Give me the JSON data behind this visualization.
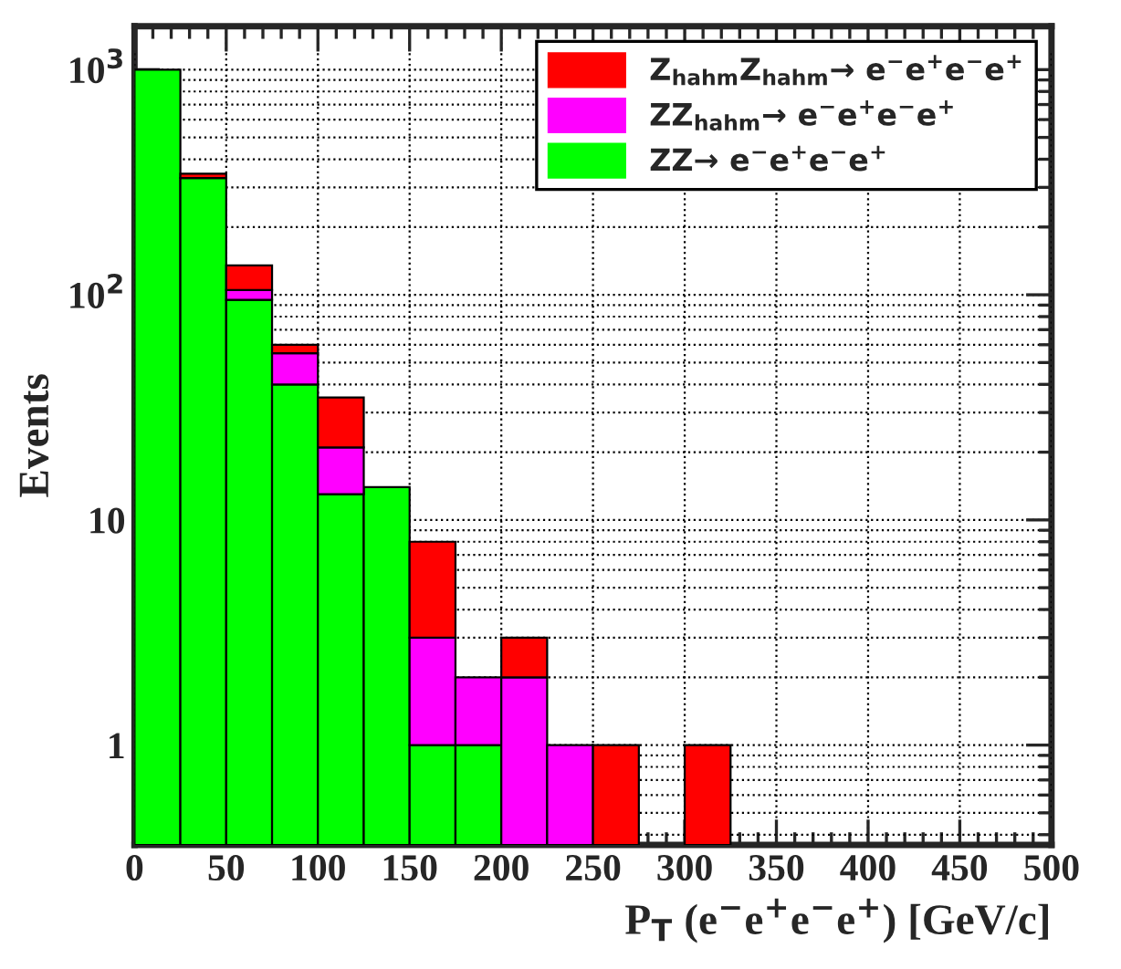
{
  "chart_data": {
    "type": "bar",
    "stacked": true,
    "log": "y",
    "grid": true,
    "legend": "top right",
    "xlabel": "P$_{T}$ (e$^{−}$e$^{+}$e$^{−}$e$^{+}$) [GeV/c]",
    "ylabel": "Events",
    "x": [
      12.5,
      37.5,
      62.5,
      87.5,
      112.5,
      137.5,
      162.5,
      187.5,
      212.5,
      237.5,
      262.5,
      287.5,
      312.5
    ],
    "series": [
      {
        "name": "ZZ→ e$^{−}$e$^{+}$e$^{−}$e$^{+}$",
        "color": "#00ff00",
        "values": [
          1000,
          330,
          95,
          40,
          13,
          14,
          1,
          1,
          null,
          null,
          null,
          null,
          null
        ]
      },
      {
        "name": "ZZ$_{hahm}$→ e$^{−}$e$^{+}$e$^{−}$e$^{+}$",
        "color": "#ff00ff",
        "values": [
          null,
          null,
          10,
          15,
          8,
          null,
          2,
          1,
          2,
          1,
          null,
          null,
          null
        ]
      },
      {
        "name": "Z$_{hahm}$Z$_{hahm}$→ e$^{−}$e$^{+}$e$^{−}$e$^{+}$",
        "color": "#ff0000",
        "values": [
          null,
          15,
          30,
          5,
          14,
          null,
          5,
          null,
          1,
          null,
          1,
          null,
          1
        ]
      }
    ],
    "xlim": [
      0,
      500
    ],
    "xticks": [
      0,
      50,
      100,
      150,
      200,
      250,
      300,
      350,
      400,
      450,
      500
    ],
    "ylim": [
      0.36,
      1560
    ],
    "yticks": [
      {
        "value": 1,
        "label": "1"
      },
      {
        "value": 10,
        "label": "10"
      },
      {
        "value": 100,
        "label": "10$^{2}$"
      },
      {
        "value": 1000,
        "label": "10$^{3}$"
      }
    ]
  }
}
